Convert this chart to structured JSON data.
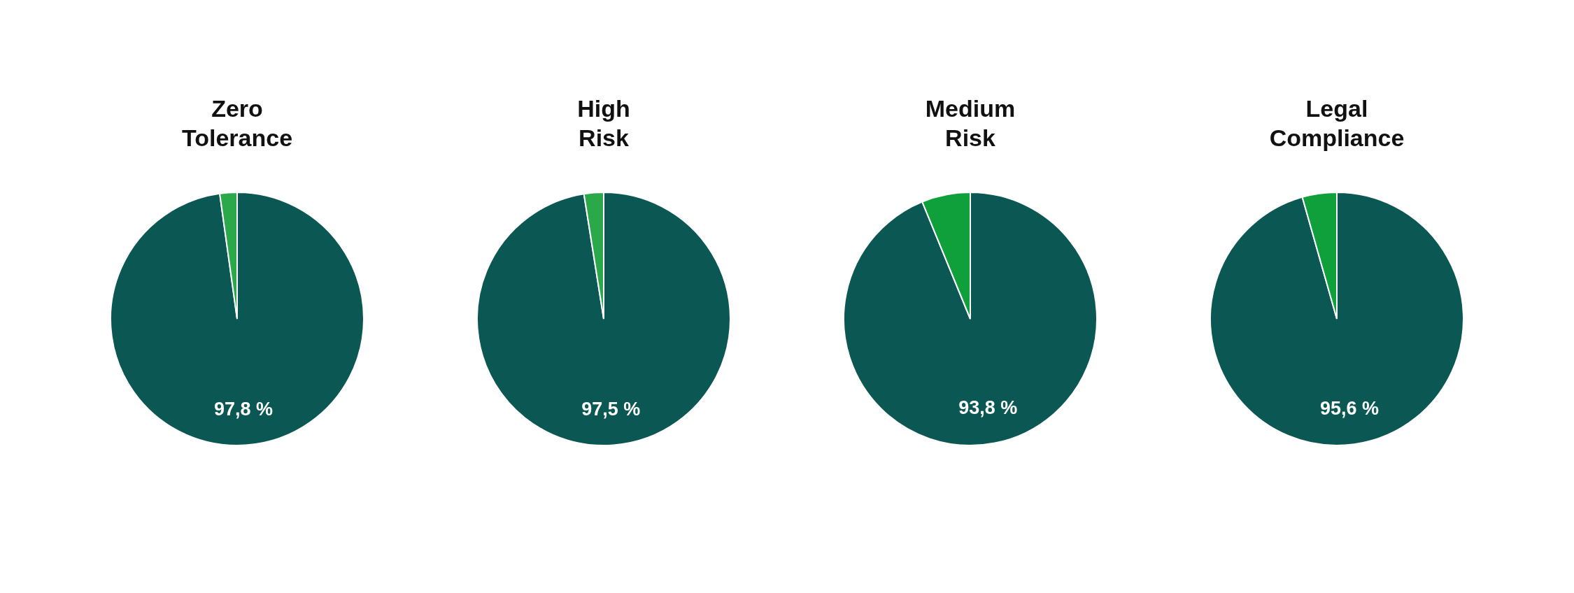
{
  "chart_data": [
    {
      "type": "pie",
      "title": "Zero\nTolerance",
      "categories": [
        null,
        null
      ],
      "values": [
        97.8,
        2.2
      ],
      "colors": [
        "#0b5753",
        "#2aa84a"
      ],
      "value_labels": [
        "97,8 %",
        null
      ]
    },
    {
      "type": "pie",
      "title": "High\nRisk",
      "categories": [
        null,
        null
      ],
      "values": [
        97.5,
        2.5
      ],
      "colors": [
        "#0b5753",
        "#2aa84a"
      ],
      "value_labels": [
        "97,5 %",
        null
      ]
    },
    {
      "type": "pie",
      "title": "Medium\nRisk",
      "categories": [
        null,
        null
      ],
      "values": [
        93.8,
        6.2
      ],
      "colors": [
        "#0b5753",
        "#0fa03b"
      ],
      "value_labels": [
        "93,8 %",
        null
      ]
    },
    {
      "type": "pie",
      "title": "Legal\nCompliance",
      "categories": [
        null,
        null
      ],
      "values": [
        95.6,
        4.4
      ],
      "colors": [
        "#0b5753",
        "#0fa03b"
      ],
      "value_labels": [
        "95,6 %",
        null
      ]
    }
  ]
}
